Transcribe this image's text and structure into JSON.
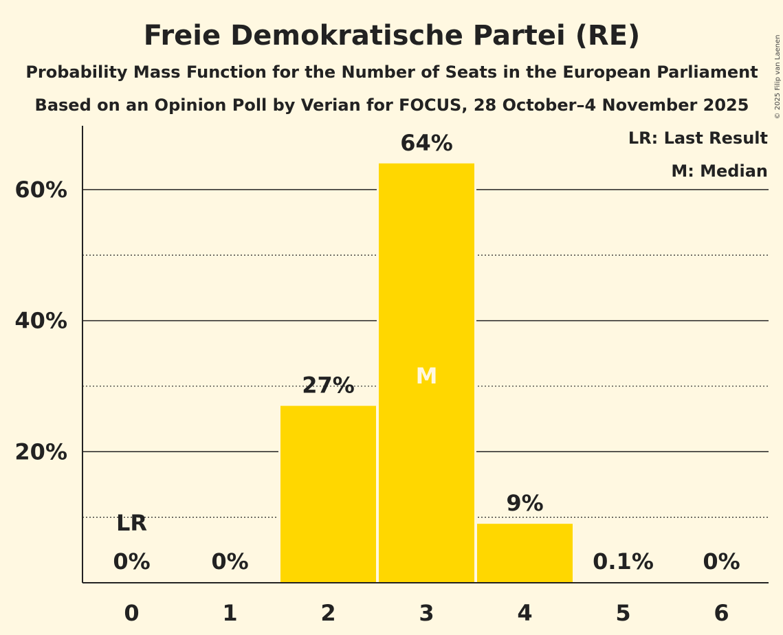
{
  "chart_data": {
    "type": "bar",
    "title": "Freie Demokratische Partei (RE)",
    "subtitle_1": "Probability Mass Function for the Number of Seats in the European Parliament",
    "subtitle_2": "Based on an Opinion Poll by Verian for FOCUS, 28 October–4 November 2025",
    "categories": [
      "0",
      "1",
      "2",
      "3",
      "4",
      "5",
      "6"
    ],
    "values": [
      0,
      0,
      27,
      64,
      9,
      0.1,
      0
    ],
    "value_labels": [
      "0%",
      "0%",
      "27%",
      "64%",
      "9%",
      "0.1%",
      "0%"
    ],
    "ylim": [
      0,
      70
    ],
    "major_ticks": [
      20,
      40,
      60
    ],
    "major_tick_labels": [
      "20%",
      "40%",
      "60%"
    ],
    "minor_ticks": [
      10,
      30,
      50
    ],
    "last_result_index": 0,
    "last_result_label": "LR",
    "median_index": 3,
    "median_label": "M",
    "bar_color": "#ffd700",
    "legend": [
      "LR: Last Result",
      "M: Median"
    ],
    "xlabel": "",
    "ylabel": ""
  },
  "copyright": "© 2025 Filip van Laenen"
}
